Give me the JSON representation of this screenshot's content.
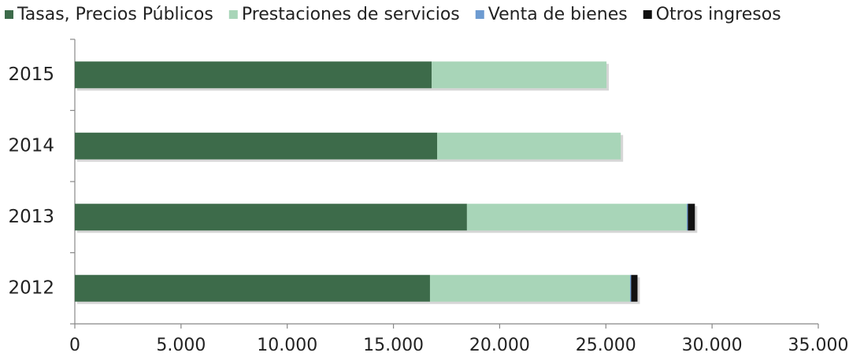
{
  "chart_data": {
    "type": "stacked-barh",
    "categories": [
      "2015",
      "2014",
      "2013",
      "2012"
    ],
    "series": [
      {
        "name": "Tasas, Precios Públicos",
        "color": "#3d6b4a",
        "values": [
          16800,
          17060,
          18460,
          16720
        ]
      },
      {
        "name": "Prestaciones de servicios",
        "color": "#a8d5b8",
        "values": [
          8230,
          8640,
          10350,
          9420
        ]
      },
      {
        "name": "Venta de bienes",
        "color": "#6d9bd1",
        "values": [
          0,
          0,
          50,
          50
        ]
      },
      {
        "name": "Otros ingresos",
        "color": "#111111",
        "values": [
          0,
          0,
          330,
          300
        ]
      }
    ],
    "xlim": [
      0,
      35000
    ],
    "xticks": [
      0,
      {
        "value": 5000,
        "label": "5.000"
      },
      {
        "value": 10000,
        "label": "10.000"
      },
      {
        "value": 15000,
        "label": "15.000"
      },
      {
        "value": 20000,
        "label": "20.000"
      },
      {
        "value": 25000,
        "label": "25.000"
      },
      {
        "value": 30000,
        "label": "30.000"
      },
      {
        "value": 35000,
        "label": "35.000"
      }
    ],
    "legend": "top"
  }
}
